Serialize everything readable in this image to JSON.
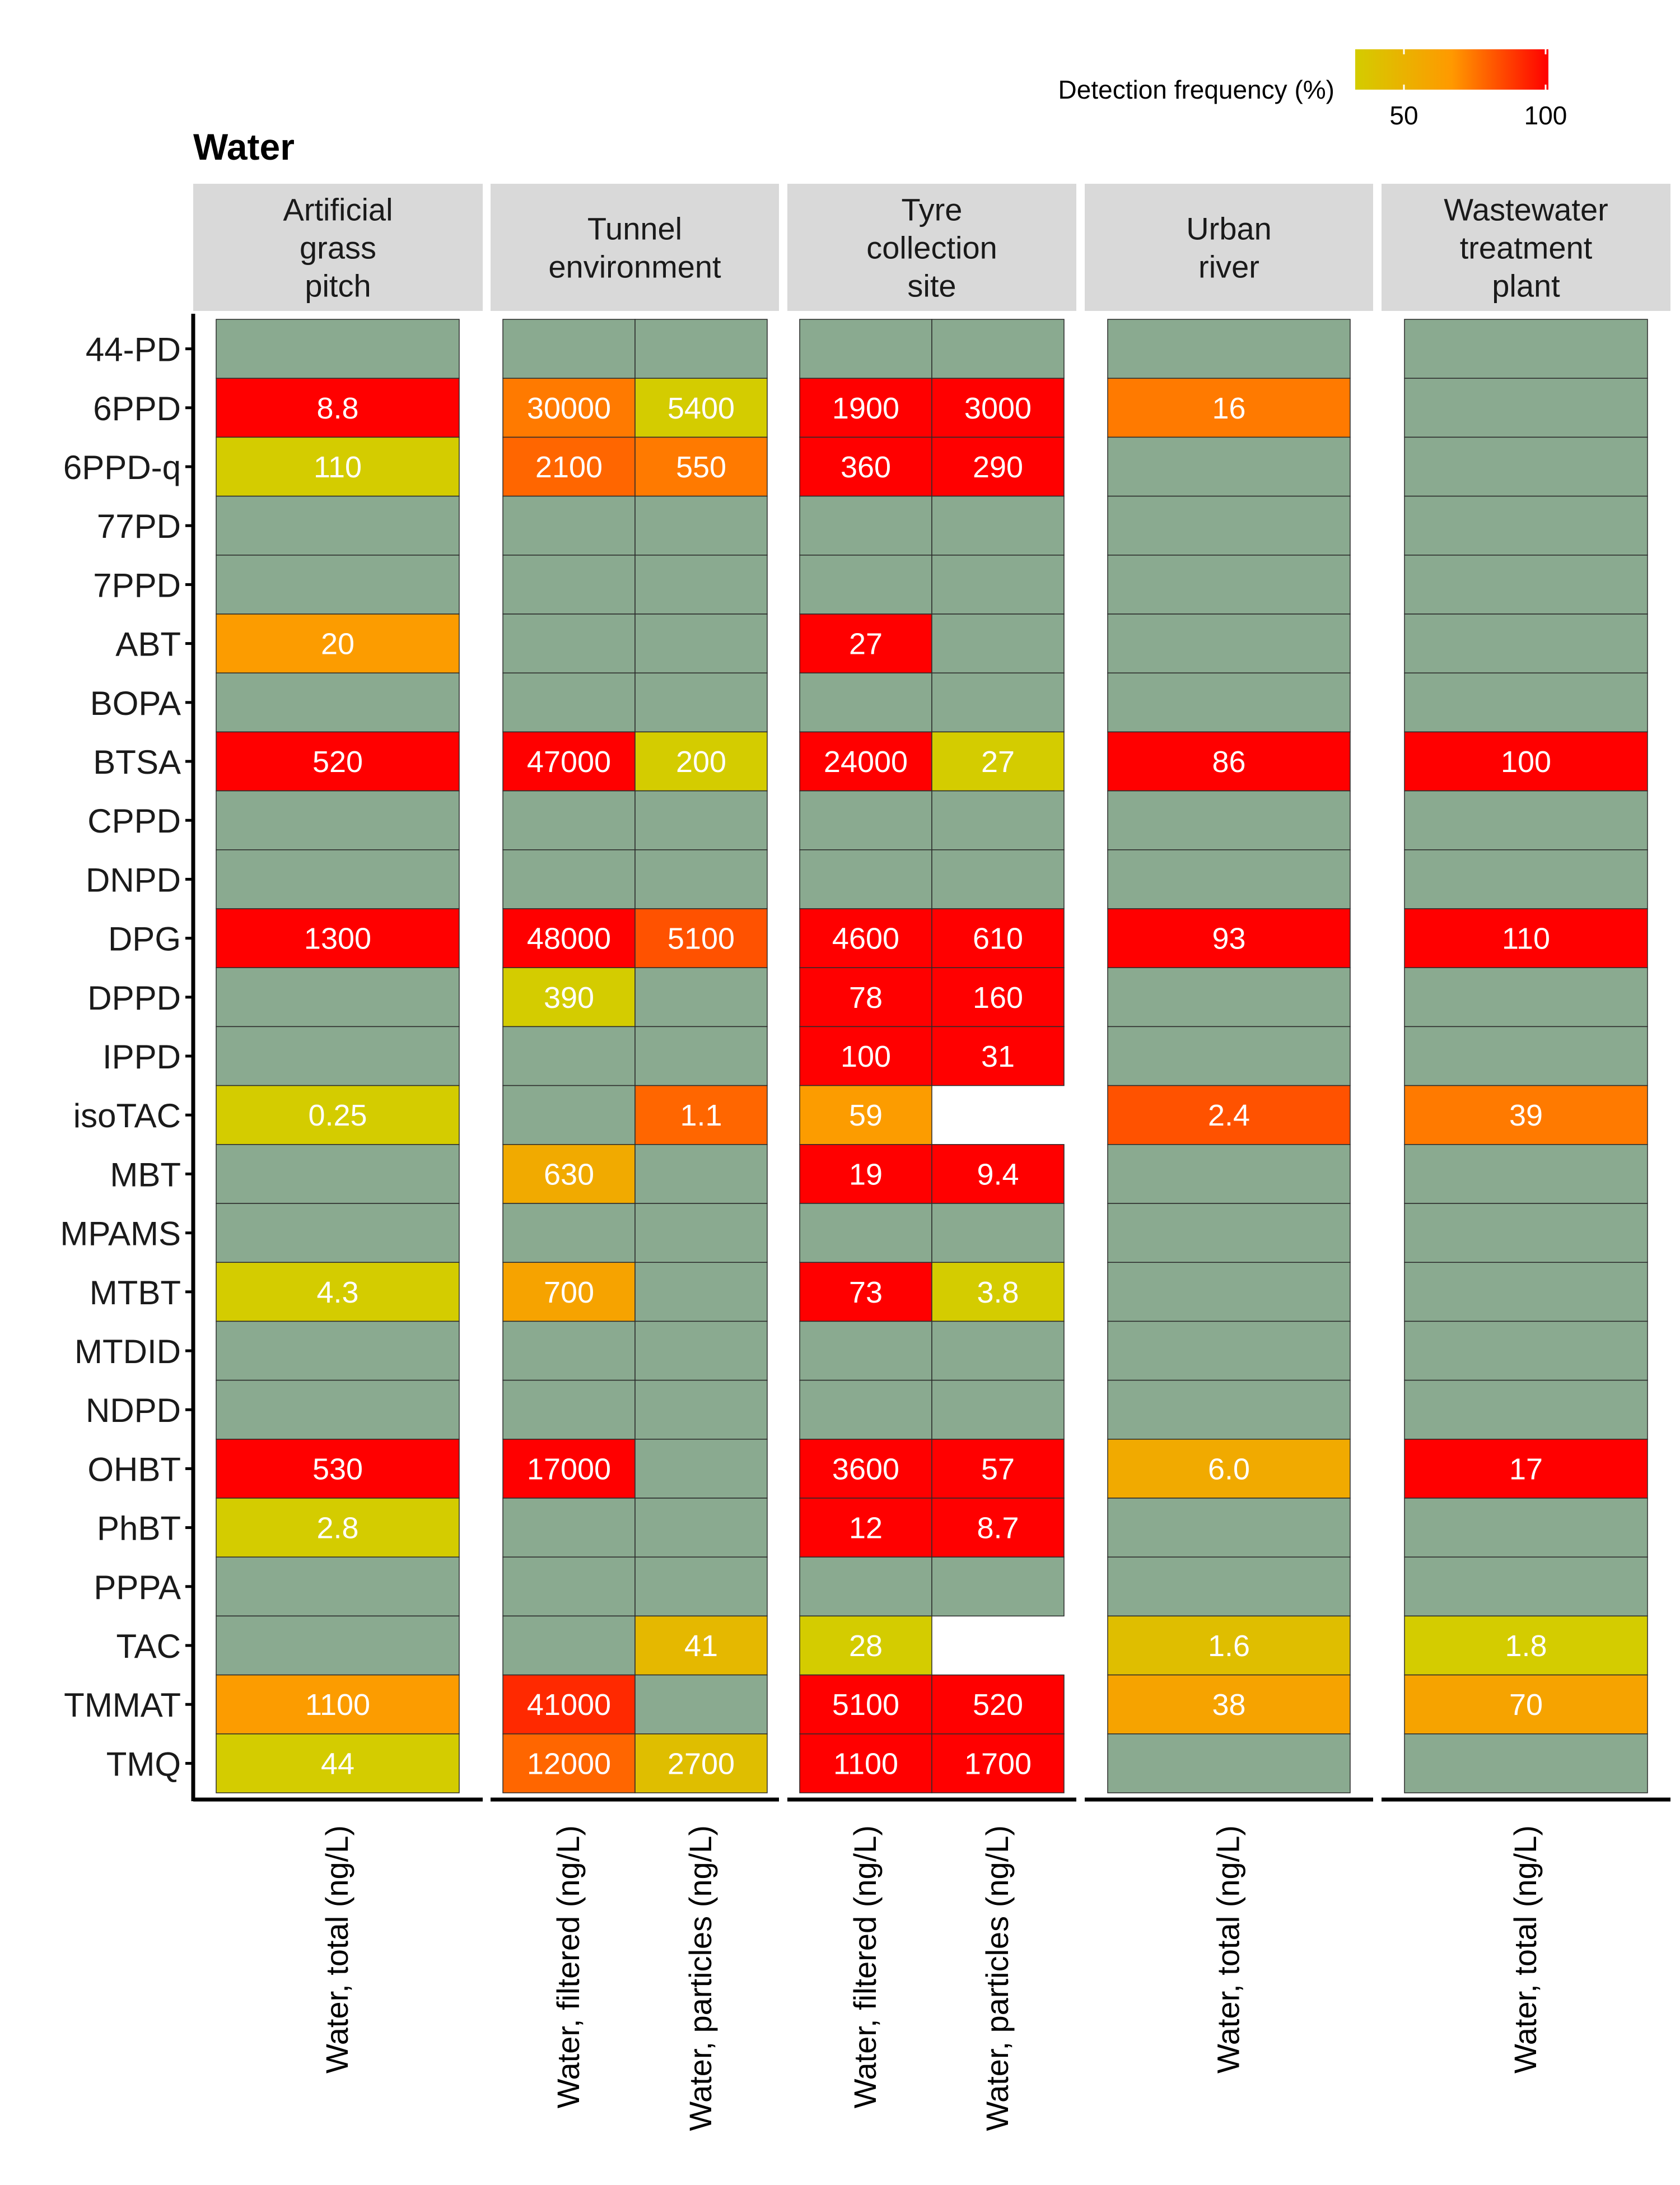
{
  "chart_data": {
    "type": "heatmap",
    "title": "Water",
    "legend": {
      "title": "Detection frequency (%)",
      "ticks": [
        "50",
        "100"
      ],
      "range": [
        0,
        100
      ],
      "colors": [
        "#d4cc00",
        "#ff9900",
        "#ff0000"
      ],
      "placement": "top-right"
    },
    "colors": {
      "not_detected": "#8aaa90"
    },
    "panels": [
      {
        "name": "Artificial grass pitch",
        "label_lines": [
          "Artificial",
          "grass",
          "pitch"
        ],
        "columns": [
          "Water, total (ng/L)"
        ],
        "cells": [
          {
            "row": "6PPD",
            "col": 0,
            "label": "8.8",
            "freq": 100
          },
          {
            "row": "6PPD-q",
            "col": 0,
            "label": "110",
            "freq": 25
          },
          {
            "row": "ABT",
            "col": 0,
            "label": "20",
            "freq": 60
          },
          {
            "row": "BTSA",
            "col": 0,
            "label": "520",
            "freq": 100
          },
          {
            "row": "DPG",
            "col": 0,
            "label": "1300",
            "freq": 100
          },
          {
            "row": "isoTAC",
            "col": 0,
            "label": "0.25",
            "freq": 25
          },
          {
            "row": "MTBT",
            "col": 0,
            "label": "4.3",
            "freq": 25
          },
          {
            "row": "OHBT",
            "col": 0,
            "label": "530",
            "freq": 100
          },
          {
            "row": "PhBT",
            "col": 0,
            "label": "2.8",
            "freq": 25
          },
          {
            "row": "TMMAT",
            "col": 0,
            "label": "1100",
            "freq": 60
          },
          {
            "row": "TMQ",
            "col": 0,
            "label": "44",
            "freq": 25
          }
        ],
        "missing": []
      },
      {
        "name": "Tunnel environment",
        "label_lines": [
          "Tunnel",
          "environment"
        ],
        "columns": [
          "Water, filtered (ng/L)",
          "Water, particles (ng/L)"
        ],
        "cells": [
          {
            "row": "6PPD",
            "col": 0,
            "label": "30000",
            "freq": 70
          },
          {
            "row": "6PPD",
            "col": 1,
            "label": "5400",
            "freq": 25
          },
          {
            "row": "6PPD-q",
            "col": 0,
            "label": "2100",
            "freq": 75
          },
          {
            "row": "6PPD-q",
            "col": 1,
            "label": "550",
            "freq": 70
          },
          {
            "row": "BTSA",
            "col": 0,
            "label": "47000",
            "freq": 100
          },
          {
            "row": "BTSA",
            "col": 1,
            "label": "200",
            "freq": 25
          },
          {
            "row": "DPG",
            "col": 0,
            "label": "48000",
            "freq": 100
          },
          {
            "row": "DPG",
            "col": 1,
            "label": "5100",
            "freq": 80
          },
          {
            "row": "DPPD",
            "col": 0,
            "label": "390",
            "freq": 25
          },
          {
            "row": "isoTAC",
            "col": 1,
            "label": "1.1",
            "freq": 75
          },
          {
            "row": "MBT",
            "col": 0,
            "label": "630",
            "freq": 50
          },
          {
            "row": "MTBT",
            "col": 0,
            "label": "700",
            "freq": 55
          },
          {
            "row": "OHBT",
            "col": 0,
            "label": "17000",
            "freq": 100
          },
          {
            "row": "TAC",
            "col": 1,
            "label": "41",
            "freq": 40
          },
          {
            "row": "TMMAT",
            "col": 0,
            "label": "41000",
            "freq": 90
          },
          {
            "row": "TMQ",
            "col": 0,
            "label": "12000",
            "freq": 75
          },
          {
            "row": "TMQ",
            "col": 1,
            "label": "2700",
            "freq": 35
          }
        ],
        "missing": []
      },
      {
        "name": "Tyre collection site",
        "label_lines": [
          "Tyre",
          "collection",
          "site"
        ],
        "columns": [
          "Water, filtered (ng/L)",
          "Water, particles (ng/L)"
        ],
        "cells": [
          {
            "row": "6PPD",
            "col": 0,
            "label": "1900",
            "freq": 100
          },
          {
            "row": "6PPD",
            "col": 1,
            "label": "3000",
            "freq": 100
          },
          {
            "row": "6PPD-q",
            "col": 0,
            "label": "360",
            "freq": 100
          },
          {
            "row": "6PPD-q",
            "col": 1,
            "label": "290",
            "freq": 100
          },
          {
            "row": "ABT",
            "col": 0,
            "label": "27",
            "freq": 100
          },
          {
            "row": "BTSA",
            "col": 0,
            "label": "24000",
            "freq": 100
          },
          {
            "row": "BTSA",
            "col": 1,
            "label": "27",
            "freq": 25
          },
          {
            "row": "DPG",
            "col": 0,
            "label": "4600",
            "freq": 100
          },
          {
            "row": "DPG",
            "col": 1,
            "label": "610",
            "freq": 100
          },
          {
            "row": "DPPD",
            "col": 0,
            "label": "78",
            "freq": 100
          },
          {
            "row": "DPPD",
            "col": 1,
            "label": "160",
            "freq": 100
          },
          {
            "row": "IPPD",
            "col": 0,
            "label": "100",
            "freq": 100
          },
          {
            "row": "IPPD",
            "col": 1,
            "label": "31",
            "freq": 100
          },
          {
            "row": "isoTAC",
            "col": 0,
            "label": "59",
            "freq": 60
          },
          {
            "row": "MBT",
            "col": 0,
            "label": "19",
            "freq": 100
          },
          {
            "row": "MBT",
            "col": 1,
            "label": "9.4",
            "freq": 100
          },
          {
            "row": "MTBT",
            "col": 0,
            "label": "73",
            "freq": 100
          },
          {
            "row": "MTBT",
            "col": 1,
            "label": "3.8",
            "freq": 25
          },
          {
            "row": "OHBT",
            "col": 0,
            "label": "3600",
            "freq": 100
          },
          {
            "row": "OHBT",
            "col": 1,
            "label": "57",
            "freq": 100
          },
          {
            "row": "PhBT",
            "col": 0,
            "label": "12",
            "freq": 100
          },
          {
            "row": "PhBT",
            "col": 1,
            "label": "8.7",
            "freq": 100
          },
          {
            "row": "TAC",
            "col": 0,
            "label": "28",
            "freq": 25
          },
          {
            "row": "TMMAT",
            "col": 0,
            "label": "5100",
            "freq": 100
          },
          {
            "row": "TMMAT",
            "col": 1,
            "label": "520",
            "freq": 100
          },
          {
            "row": "TMQ",
            "col": 0,
            "label": "1100",
            "freq": 100
          },
          {
            "row": "TMQ",
            "col": 1,
            "label": "1700",
            "freq": 100
          }
        ],
        "missing": [
          {
            "row": "isoTAC",
            "col": 1
          },
          {
            "row": "TAC",
            "col": 1
          }
        ]
      },
      {
        "name": "Urban river",
        "label_lines": [
          "Urban",
          "river"
        ],
        "columns": [
          "Water, total (ng/L)"
        ],
        "cells": [
          {
            "row": "6PPD",
            "col": 0,
            "label": "16",
            "freq": 70
          },
          {
            "row": "BTSA",
            "col": 0,
            "label": "86",
            "freq": 100
          },
          {
            "row": "DPG",
            "col": 0,
            "label": "93",
            "freq": 100
          },
          {
            "row": "isoTAC",
            "col": 0,
            "label": "2.4",
            "freq": 80
          },
          {
            "row": "OHBT",
            "col": 0,
            "label": "6.0",
            "freq": 50
          },
          {
            "row": "TAC",
            "col": 0,
            "label": "1.6",
            "freq": 35
          },
          {
            "row": "TMMAT",
            "col": 0,
            "label": "38",
            "freq": 55
          }
        ],
        "missing": []
      },
      {
        "name": "Wastewater treatment plant",
        "label_lines": [
          "Wastewater",
          "treatment",
          "plant"
        ],
        "columns": [
          "Water, total (ng/L)"
        ],
        "cells": [
          {
            "row": "BTSA",
            "col": 0,
            "label": "100",
            "freq": 100
          },
          {
            "row": "DPG",
            "col": 0,
            "label": "110",
            "freq": 100
          },
          {
            "row": "isoTAC",
            "col": 0,
            "label": "39",
            "freq": 70
          },
          {
            "row": "OHBT",
            "col": 0,
            "label": "17",
            "freq": 100
          },
          {
            "row": "TAC",
            "col": 0,
            "label": "1.8",
            "freq": 25
          },
          {
            "row": "TMMAT",
            "col": 0,
            "label": "70",
            "freq": 55
          }
        ],
        "missing": []
      }
    ],
    "rows": [
      "44-PD",
      "6PPD",
      "6PPD-q",
      "77PD",
      "7PPD",
      "ABT",
      "BOPA",
      "BTSA",
      "CPPD",
      "DNPD",
      "DPG",
      "DPPD",
      "IPPD",
      "isoTAC",
      "MBT",
      "MPAMS",
      "MTBT",
      "MTDID",
      "NDPD",
      "OHBT",
      "PhBT",
      "PPPA",
      "TAC",
      "TMMAT",
      "TMQ"
    ]
  }
}
